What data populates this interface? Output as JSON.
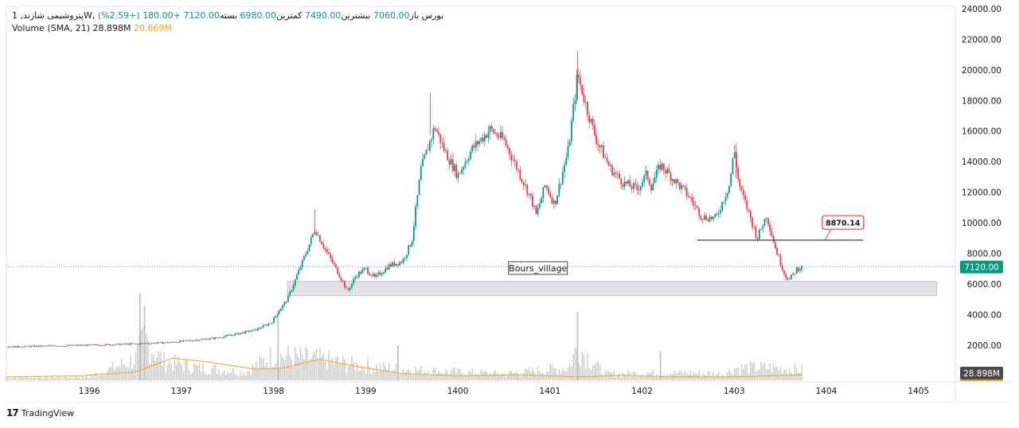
{
  "legend": {
    "symbol": "پتروشیمی شازند, 1W, بورس",
    "open_label": "باز",
    "open_value": "7060.00",
    "high_label": "بیشترین",
    "high_value": "7490.00",
    "low_label": "کمترین",
    "low_value": "6980.00",
    "close_label": "بسته",
    "close_value": "7120.00",
    "change": "+180.00 (+2.59%)",
    "volume_label": "Volume",
    "volume_params": "(SMA, 21)",
    "volume_value": "28.898M",
    "volume_sma_value": "20.669M"
  },
  "footer": {
    "brand": "TradingView",
    "logo_glyph": "17"
  },
  "colors": {
    "up": "#089981",
    "down": "#f23645",
    "volume": "#cfcfcf",
    "sma": "#f7a21b",
    "zone": "#e1e1e5",
    "axis_text": "#131722"
  },
  "chart_data": {
    "type": "candlestick",
    "timeframe": "1W",
    "x_axis": {
      "ticks": [
        "1396",
        "1397",
        "1398",
        "1399",
        "1400",
        "1401",
        "1402",
        "1403",
        "1404",
        "1405"
      ],
      "range": [
        1395.1,
        1405.4
      ]
    },
    "y_axis": {
      "position": "right",
      "range": [
        0,
        24000
      ],
      "ticks": [
        "2000.00",
        "4000.00",
        "6000.00",
        "8000.00",
        "10000.00",
        "12000.00",
        "14000.00",
        "16000.00",
        "18000.00",
        "20000.00",
        "22000.00",
        "24000.00"
      ],
      "last_price_label": "7120.00",
      "volume_label": "28.898M"
    },
    "price_path": [
      [
        1395.1,
        1900
      ],
      [
        1395.9,
        2000
      ],
      [
        1396.5,
        2100
      ],
      [
        1396.9,
        2200
      ],
      [
        1397.4,
        2500
      ],
      [
        1397.8,
        3000
      ],
      [
        1397.98,
        3500
      ],
      [
        1398.05,
        4200
      ],
      [
        1398.15,
        5000
      ],
      [
        1398.25,
        6500
      ],
      [
        1398.35,
        8000
      ],
      [
        1398.45,
        9600
      ],
      [
        1398.55,
        8400
      ],
      [
        1398.65,
        7300
      ],
      [
        1398.75,
        6200
      ],
      [
        1398.8,
        5500
      ],
      [
        1398.9,
        6600
      ],
      [
        1399.0,
        7000
      ],
      [
        1399.1,
        6400
      ],
      [
        1399.25,
        7200
      ],
      [
        1399.4,
        7500
      ],
      [
        1399.5,
        8800
      ],
      [
        1399.6,
        13500
      ],
      [
        1399.75,
        16300
      ],
      [
        1399.85,
        14800
      ],
      [
        1400.0,
        13100
      ],
      [
        1400.15,
        14800
      ],
      [
        1400.35,
        16100
      ],
      [
        1400.5,
        15400
      ],
      [
        1400.65,
        13500
      ],
      [
        1400.8,
        11500
      ],
      [
        1400.85,
        10500
      ],
      [
        1400.95,
        12500
      ],
      [
        1401.05,
        11200
      ],
      [
        1401.2,
        14800
      ],
      [
        1401.3,
        19700
      ],
      [
        1401.4,
        17500
      ],
      [
        1401.5,
        15500
      ],
      [
        1401.65,
        13600
      ],
      [
        1401.8,
        12600
      ],
      [
        1401.95,
        12200
      ],
      [
        1402.05,
        13200
      ],
      [
        1402.1,
        12400
      ],
      [
        1402.2,
        13800
      ],
      [
        1402.35,
        12800
      ],
      [
        1402.5,
        11800
      ],
      [
        1402.65,
        10400
      ],
      [
        1402.8,
        10300
      ],
      [
        1402.95,
        12500
      ],
      [
        1403.0,
        14800
      ],
      [
        1403.05,
        12500
      ],
      [
        1403.15,
        10800
      ],
      [
        1403.25,
        9000
      ],
      [
        1403.35,
        10500
      ],
      [
        1403.45,
        8300
      ],
      [
        1403.55,
        6600
      ],
      [
        1403.6,
        6300
      ],
      [
        1403.68,
        7000
      ],
      [
        1403.75,
        7120
      ]
    ],
    "volume_profile": [
      [
        1395.1,
        0.06
      ],
      [
        1396.0,
        0.08
      ],
      [
        1396.5,
        0.5
      ],
      [
        1396.6,
        1.0
      ],
      [
        1396.8,
        0.45
      ],
      [
        1397.2,
        0.3
      ],
      [
        1397.7,
        0.2
      ],
      [
        1398.0,
        0.6
      ],
      [
        1398.2,
        0.55
      ],
      [
        1398.5,
        0.5
      ],
      [
        1398.9,
        0.35
      ],
      [
        1399.5,
        0.25
      ],
      [
        1400.5,
        0.15
      ],
      [
        1401.2,
        0.3
      ],
      [
        1401.3,
        0.8
      ],
      [
        1401.6,
        0.15
      ],
      [
        1402.2,
        0.18
      ],
      [
        1402.9,
        0.16
      ],
      [
        1403.0,
        0.3
      ],
      [
        1403.4,
        0.3
      ],
      [
        1403.75,
        0.25
      ]
    ],
    "sma_profile": [
      [
        1395.1,
        0.06
      ],
      [
        1395.9,
        0.08
      ],
      [
        1396.5,
        0.15
      ],
      [
        1396.9,
        0.4
      ],
      [
        1397.3,
        0.33
      ],
      [
        1397.8,
        0.2
      ],
      [
        1398.1,
        0.22
      ],
      [
        1398.5,
        0.38
      ],
      [
        1398.9,
        0.25
      ],
      [
        1399.4,
        0.12
      ],
      [
        1400.0,
        0.08
      ],
      [
        1400.7,
        0.1
      ],
      [
        1401.3,
        0.06
      ],
      [
        1401.8,
        0.09
      ],
      [
        1402.3,
        0.06
      ],
      [
        1403.0,
        0.06
      ],
      [
        1403.4,
        0.08
      ],
      [
        1403.75,
        0.1
      ]
    ],
    "support_zone": {
      "x_start": 1398.15,
      "x_end": 1405.2,
      "y_low": 5250,
      "y_high": 6200
    },
    "horizontal_line": {
      "x_start": 1402.6,
      "x_end": 1404.4,
      "y": 8870.14
    },
    "callout": {
      "text": "8870.14",
      "x": 1404.18,
      "y": 10000
    },
    "watermark_label": {
      "text": "Bours_village",
      "x": 1400.87,
      "y": 7050
    },
    "last_price": 7120
  }
}
